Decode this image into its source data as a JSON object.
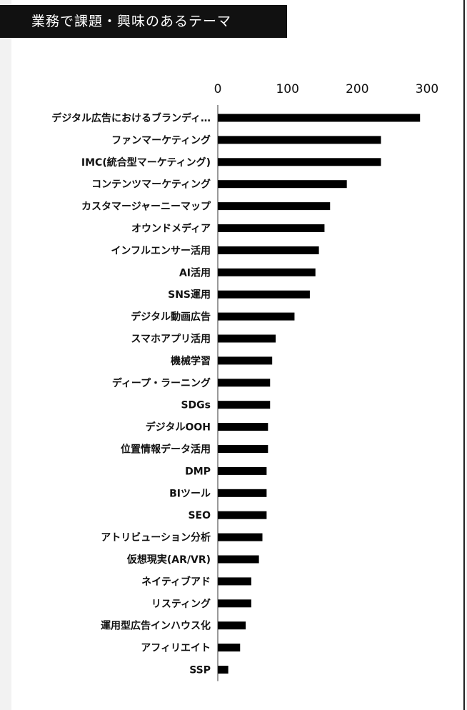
{
  "title": "業務で課題・興味のあるテーマ",
  "chart_data": {
    "type": "bar",
    "orientation": "horizontal",
    "title": "業務で課題・興味のあるテーマ",
    "xlim": [
      0,
      300
    ],
    "xticks": [
      0,
      100,
      200,
      300
    ],
    "xtick_labels": [
      "0",
      "100",
      "200",
      "300"
    ],
    "axis_position": "top",
    "grid": false,
    "bar_color": "#000000",
    "categories": [
      "デジタル広告におけるブランディ…",
      "ファンマーケティング",
      "IMC(統合型マーケティング)",
      "コンテンツマーケティング",
      "カスタマージャーニーマップ",
      "オウンドメディア",
      "インフルエンサー活用",
      "AI活用",
      "SNS運用",
      "デジタル動画広告",
      "スマホアプリ活用",
      "機械学習",
      "ディープ・ラーニング",
      "SDGs",
      "デジタルOOH",
      "位置情報データ活用",
      "DMP",
      "BIツール",
      "SEO",
      "アトリビューション分析",
      "仮想現実(AR/VR)",
      "ネイティブアド",
      "リスティング",
      "運用型広告インハウス化",
      "アフィリエイト",
      "SSP"
    ],
    "values": [
      290,
      234,
      234,
      185,
      161,
      153,
      145,
      140,
      132,
      110,
      83,
      78,
      75,
      75,
      72,
      72,
      70,
      70,
      70,
      64,
      59,
      48,
      48,
      40,
      32,
      15
    ]
  }
}
